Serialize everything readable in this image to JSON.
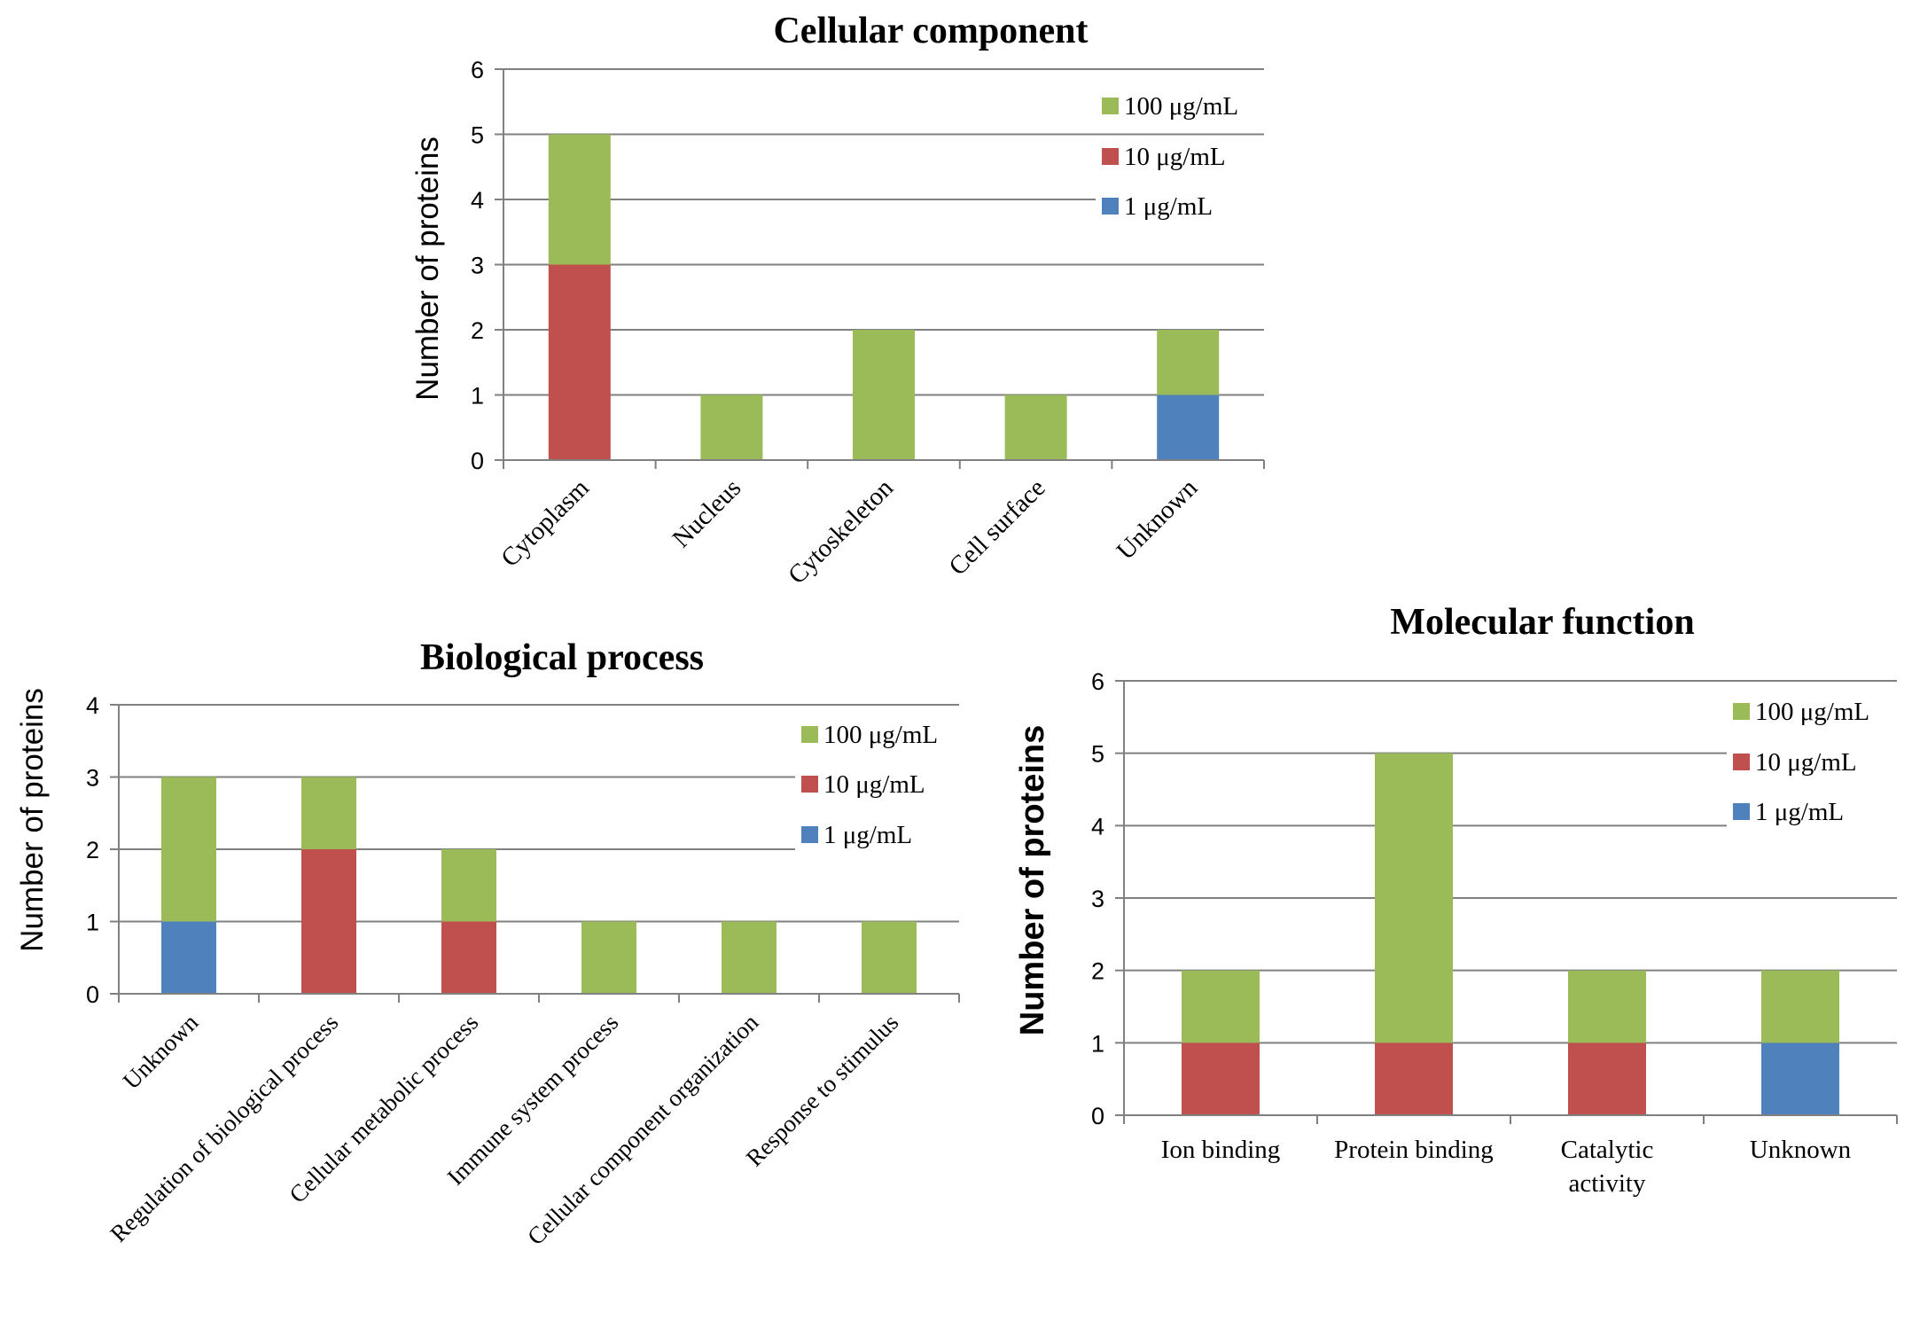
{
  "colors": {
    "c100": "#9bbb59",
    "c10": "#c0504d",
    "c1": "#4f81bd",
    "grid": "#808080",
    "axis": "#808080"
  },
  "chart_data": [
    {
      "id": "cellular",
      "type": "bar",
      "stacked": true,
      "title": "Cellular component",
      "ylabel": "Number of proteins",
      "xlabel": "",
      "ylim": [
        0,
        6
      ],
      "yticks": [
        "0",
        "1",
        "2",
        "3",
        "4",
        "5",
        "6"
      ],
      "grid": true,
      "legend_position": "top-right",
      "categories": [
        "Cytoplasm",
        "Nucleus",
        "Cytoskeleton",
        "Cell surface",
        "Unknown"
      ],
      "series": [
        {
          "name": "1 μg/mL",
          "color_key": "c1",
          "values": [
            0,
            0,
            0,
            0,
            1
          ]
        },
        {
          "name": "10 μg/mL",
          "color_key": "c10",
          "values": [
            3,
            0,
            0,
            0,
            0
          ]
        },
        {
          "name": "100 μg/mL",
          "color_key": "c100",
          "values": [
            2,
            1,
            2,
            1,
            1
          ]
        }
      ],
      "legend": [
        "100 μg/mL",
        "10 μg/mL",
        "1 μg/mL"
      ]
    },
    {
      "id": "biological",
      "type": "bar",
      "stacked": true,
      "title": "Biological process",
      "ylabel": "Number of proteins",
      "xlabel": "",
      "ylim": [
        0,
        4
      ],
      "yticks": [
        "0",
        "1",
        "2",
        "3",
        "4"
      ],
      "grid": true,
      "legend_position": "top-right",
      "categories": [
        "Unknown",
        "Regulation of biological process",
        "Cellular metabolic process",
        "Immune system process",
        "Cellular component organization",
        "Response to stimulus"
      ],
      "series": [
        {
          "name": "1 μg/mL",
          "color_key": "c1",
          "values": [
            1,
            0,
            0,
            0,
            0,
            0
          ]
        },
        {
          "name": "10 μg/mL",
          "color_key": "c10",
          "values": [
            0,
            2,
            1,
            0,
            0,
            0
          ]
        },
        {
          "name": "100 μg/mL",
          "color_key": "c100",
          "values": [
            2,
            1,
            1,
            1,
            1,
            1
          ]
        }
      ],
      "legend": [
        "100 μg/mL",
        "10 μg/mL",
        "1 μg/mL"
      ]
    },
    {
      "id": "molecular",
      "type": "bar",
      "stacked": true,
      "title": "Molecular function",
      "ylabel": "Number of proteins",
      "xlabel": "",
      "ylim": [
        0,
        6
      ],
      "yticks": [
        "0",
        "1",
        "2",
        "3",
        "4",
        "5",
        "6"
      ],
      "grid": true,
      "legend_position": "top-right",
      "categories": [
        "Ion binding",
        "Protein binding",
        "Catalytic activity",
        "Unknown"
      ],
      "series": [
        {
          "name": "1 μg/mL",
          "color_key": "c1",
          "values": [
            0,
            0,
            0,
            1
          ]
        },
        {
          "name": "10 μg/mL",
          "color_key": "c10",
          "values": [
            1,
            1,
            1,
            0
          ]
        },
        {
          "name": "100 μg/mL",
          "color_key": "c100",
          "values": [
            1,
            4,
            1,
            1
          ]
        }
      ],
      "legend": [
        "100 μg/mL",
        "10 μg/mL",
        "1 μg/mL"
      ]
    }
  ]
}
